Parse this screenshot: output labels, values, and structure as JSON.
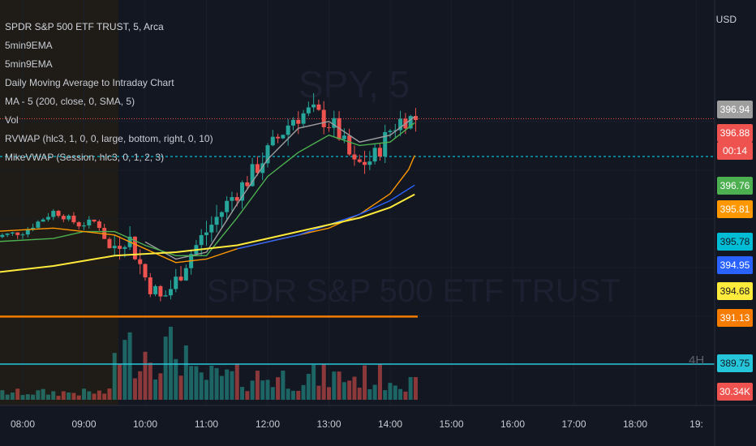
{
  "header": {
    "title": "SPDR S&P 500 ETF TRUST, 5, Arca",
    "indicators": [
      "5min9EMA",
      "5min9EMA",
      "Daily Moving Average to Intraday Chart",
      "MA - 5 (200, close, 0, SMA, 5)",
      "Vol",
      "RVWAP (hlc3, 1, 0, 0, large, bottom, right, 0, 10)",
      "MikeVWAP (Session, hlc3, 0, 1, 2, 3)"
    ]
  },
  "currency": "USD",
  "pane_label": "4H",
  "price_tags": [
    {
      "value": "396.94",
      "bg": "#9e9e9e",
      "fg": "#ffffff"
    },
    {
      "value": "396.88",
      "bg": "#ef5350",
      "fg": "#ffffff"
    },
    {
      "value": "00:14",
      "bg": "#ef5350",
      "fg": "#ffffff"
    },
    {
      "value": "396.76",
      "bg": "#4caf50",
      "fg": "#ffffff"
    },
    {
      "value": "395.81",
      "bg": "#ff9800",
      "fg": "#ffffff"
    },
    {
      "value": "395.78",
      "bg": "#00bcd4",
      "fg": "#131722"
    },
    {
      "value": "394.95",
      "bg": "#2962ff",
      "fg": "#ffffff"
    },
    {
      "value": "394.68",
      "bg": "#ffeb3b",
      "fg": "#131722"
    },
    {
      "value": "391.13",
      "bg": "#f57c00",
      "fg": "#ffffff"
    },
    {
      "value": "389.75",
      "bg": "#26c6da",
      "fg": "#131722"
    },
    {
      "value": "30.34K",
      "bg": "#ef5350",
      "fg": "#ffffff"
    }
  ],
  "colors": {
    "background": "#131722",
    "up": "#26a69a",
    "down": "#ef5350",
    "premarket": "#1f1c17",
    "ema_gray": "#9e9e9e",
    "ema_green": "#4caf50",
    "vwap_orange": "#ff9800",
    "sma_blue": "#2962ff",
    "daily_ma_yellow": "#ffeb3b",
    "level_orange": "#f57c00",
    "level_cyan": "#26c6da",
    "dotted_cyan": "#00bcd4",
    "last_price_line": "#ef5350"
  },
  "chart_data": {
    "type": "candlestick",
    "title": "SPDR S&P 500 ETF TRUST, 5, Arca",
    "x_tick_labels": [
      "08:00",
      "09:00",
      "10:00",
      "11:00",
      "12:00",
      "13:00",
      "14:00",
      "15:00",
      "16:00",
      "17:00",
      "18:00",
      "19:"
    ],
    "ylim": [
      388.6,
      397.5
    ],
    "last_price": 396.88,
    "series": [
      {
        "name": "5min9EMA",
        "color": "#9e9e9e",
        "x": [
          10.0,
          10.5,
          11.0,
          11.5,
          12.0,
          12.5,
          13.0,
          13.5,
          14.0,
          14.4
        ],
        "values": [
          393.3,
          392.8,
          393.0,
          394.4,
          395.7,
          396.6,
          396.8,
          396.2,
          396.4,
          396.94
        ]
      },
      {
        "name": "5min9EMA",
        "color": "#4caf50",
        "x": [
          7.5,
          8.5,
          9.0,
          9.5,
          10.0,
          10.5,
          11.0,
          11.5,
          12.0,
          12.5,
          13.0,
          13.5,
          14.0,
          14.4
        ],
        "values": [
          393.3,
          393.4,
          393.6,
          393.6,
          393.2,
          392.9,
          392.9,
          394.0,
          395.2,
          395.9,
          396.4,
          396.1,
          396.2,
          396.76
        ]
      },
      {
        "name": "RVWAP",
        "color": "#ff9800",
        "x": [
          7.5,
          8.5,
          9.5,
          10.0,
          10.5,
          11.0,
          11.5,
          12.0,
          12.5,
          13.0,
          13.5,
          14.0,
          14.3,
          14.4
        ],
        "values": [
          393.6,
          393.7,
          393.5,
          393.1,
          392.7,
          392.8,
          393.1,
          393.3,
          393.5,
          393.7,
          394.1,
          394.7,
          395.4,
          395.81
        ]
      },
      {
        "name": "MA - 5",
        "color": "#2962ff",
        "x": [
          11.5,
          12.0,
          12.5,
          13.0,
          13.5,
          14.0,
          14.4
        ],
        "values": [
          393.1,
          393.3,
          393.5,
          393.8,
          394.1,
          394.5,
          394.95
        ]
      },
      {
        "name": "Daily Moving Average to Intraday Chart",
        "color": "#ffeb3b",
        "x": [
          7.5,
          8.5,
          9.5,
          10.5,
          11.0,
          11.5,
          12.0,
          12.5,
          13.0,
          13.5,
          14.0,
          14.4
        ],
        "values": [
          392.4,
          392.6,
          392.9,
          393.0,
          393.1,
          393.2,
          393.4,
          393.6,
          393.8,
          394.0,
          394.3,
          394.68
        ]
      }
    ],
    "levels": [
      {
        "value": 391.13,
        "color": "#f57c00"
      },
      {
        "value": 389.75,
        "color": "#26c6da"
      },
      {
        "value": 395.78,
        "color": "#00bcd4",
        "style": "dotted"
      }
    ],
    "candles_summary": {
      "session_open_time": "09:30",
      "low_time": "10:35",
      "low_value": 391.6,
      "high_time": "12:45",
      "high_value": 397.2,
      "close_time": "14:30",
      "close_value": 396.88
    },
    "volume_last": "30.34K"
  }
}
